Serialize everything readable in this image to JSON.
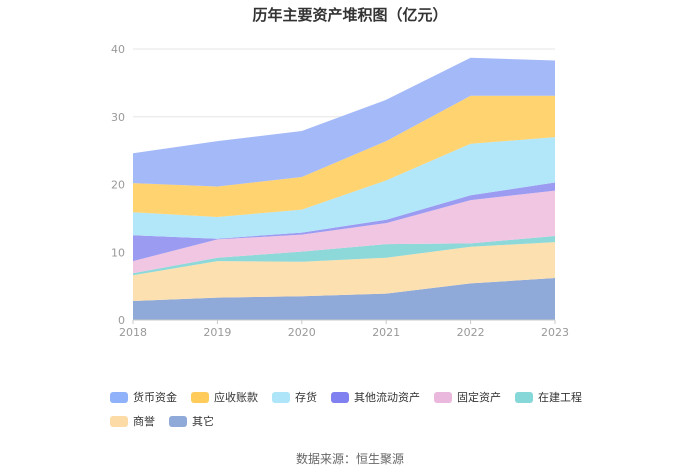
{
  "chart_data": {
    "type": "area",
    "stacked": true,
    "title": "历年主要资产堆积图（亿元）",
    "categories": [
      "2018",
      "2019",
      "2020",
      "2021",
      "2022",
      "2023"
    ],
    "ylim": [
      0,
      40
    ],
    "yticks": [
      "0",
      "10",
      "20",
      "30",
      "40"
    ],
    "grid": true,
    "legend_position": "bottom-left",
    "series": [
      {
        "name": "其它",
        "color": "#8fa9d8",
        "values": [
          2.8,
          3.3,
          3.5,
          3.9,
          5.4,
          6.2
        ]
      },
      {
        "name": "商誉",
        "color": "#fde0b0",
        "values": [
          3.8,
          5.4,
          5.1,
          5.3,
          5.4,
          5.3
        ]
      },
      {
        "name": "在建工程",
        "color": "#8dd8d8",
        "values": [
          0.3,
          0.5,
          1.5,
          2.0,
          0.5,
          0.9
        ]
      },
      {
        "name": "固定资产",
        "color": "#f0c6e2",
        "values": [
          1.8,
          2.7,
          2.5,
          3.1,
          6.4,
          6.7
        ]
      },
      {
        "name": "其他流动资产",
        "color": "#9b9bf2",
        "values": [
          3.8,
          0.1,
          0.3,
          0.5,
          0.7,
          1.2
        ]
      },
      {
        "name": "存货",
        "color": "#b2e6f9",
        "values": [
          3.4,
          3.2,
          3.4,
          5.8,
          7.6,
          6.7
        ]
      },
      {
        "name": "应收账款",
        "color": "#ffd370",
        "values": [
          4.3,
          4.5,
          4.8,
          5.8,
          7.1,
          6.1
        ]
      },
      {
        "name": "货币资金",
        "color": "#a4b9f8",
        "values": [
          4.4,
          6.7,
          6.8,
          6.1,
          5.6,
          5.2
        ]
      }
    ]
  },
  "legend_order": [
    "货币资金",
    "应收账款",
    "存货",
    "其他流动资产",
    "固定资产",
    "在建工程",
    "商誉",
    "其它"
  ],
  "legend_colors": [
    "#8fb2fa",
    "#ffcb5a",
    "#aee5f9",
    "#8080f0",
    "#eab8dc",
    "#86d8d8",
    "#fddba6",
    "#8fa9d8"
  ],
  "source": "数据来源：恒生聚源"
}
